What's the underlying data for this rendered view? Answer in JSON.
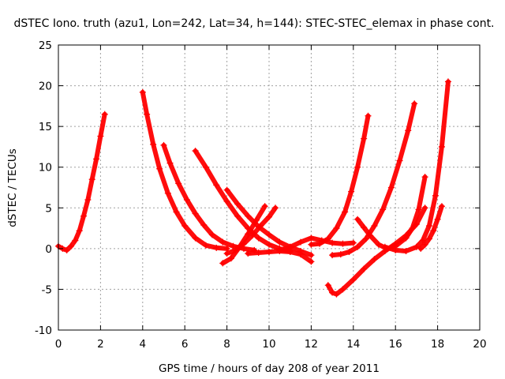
{
  "chart_data": {
    "type": "scatter",
    "title": "dSTEC Iono. truth (azu1, Lon=242, Lat=34, h=144): STEC-STEC_elemax in phase cont.",
    "xlabel": "GPS time / hours of day 208 of year 2011",
    "ylabel": "dSTEC  / TECUs",
    "xlim": [
      0,
      20
    ],
    "ylim": [
      -10,
      25
    ],
    "xticks": [
      0,
      2,
      4,
      6,
      8,
      10,
      12,
      14,
      16,
      18,
      20
    ],
    "yticks": [
      -10,
      -5,
      0,
      5,
      10,
      15,
      20,
      25
    ],
    "xtick_labels": [
      "0",
      "2",
      "4",
      "6",
      "8",
      "10",
      "12",
      "14",
      "16",
      "18",
      "20"
    ],
    "ytick_labels": [
      "-10",
      "-5",
      "0",
      "5",
      "10",
      "15",
      "20",
      "25"
    ],
    "grid": true,
    "legend": "none",
    "marker": "plus",
    "color": "#ff0000",
    "series": [
      {
        "x": [
          0.0,
          0.2,
          0.4,
          0.6,
          0.8,
          1.0,
          1.2,
          1.4,
          1.6,
          1.8,
          2.0,
          2.2
        ],
        "y": [
          0.3,
          0.0,
          -0.2,
          0.3,
          1.0,
          2.2,
          4.0,
          6.0,
          8.5,
          11.0,
          13.8,
          16.5
        ]
      },
      {
        "x": [
          4.0,
          4.2,
          4.5,
          4.8,
          5.2,
          5.6,
          6.0,
          6.5,
          7.0,
          7.5,
          8.0
        ],
        "y": [
          19.2,
          16.5,
          12.8,
          9.8,
          6.8,
          4.5,
          2.8,
          1.3,
          0.4,
          0.1,
          0.0
        ]
      },
      {
        "x": [
          5.0,
          5.3,
          5.7,
          6.1,
          6.5,
          6.9,
          7.3,
          7.8,
          8.3,
          8.8,
          9.3
        ],
        "y": [
          12.7,
          10.5,
          8.0,
          6.0,
          4.3,
          2.9,
          1.7,
          0.8,
          0.3,
          0.0,
          -0.2
        ]
      },
      {
        "x": [
          6.5,
          7.0,
          7.5,
          8.0,
          8.5,
          9.0,
          9.5,
          10.0,
          10.5,
          11.0
        ],
        "y": [
          12.0,
          10.0,
          7.8,
          5.8,
          4.0,
          2.5,
          1.3,
          0.5,
          0.0,
          -0.3
        ]
      },
      {
        "x": [
          8.0,
          8.5,
          9.0,
          9.5,
          10.0,
          10.5,
          11.0,
          11.5,
          12.0
        ],
        "y": [
          7.2,
          5.5,
          4.0,
          2.7,
          1.7,
          0.8,
          0.2,
          -0.3,
          -0.8
        ]
      },
      {
        "x": [
          7.8,
          8.2,
          8.6,
          9.0,
          9.4,
          9.8
        ],
        "y": [
          -1.8,
          -1.2,
          0.2,
          1.8,
          3.5,
          5.2
        ]
      },
      {
        "x": [
          8.0,
          8.4,
          8.8,
          9.2,
          9.6,
          10.0,
          10.3
        ],
        "y": [
          -0.6,
          -0.2,
          0.6,
          1.6,
          2.8,
          3.9,
          5.0
        ]
      },
      {
        "x": [
          9.0,
          9.5,
          10.0,
          10.5,
          11.0,
          11.5,
          12.0
        ],
        "y": [
          -0.6,
          -0.5,
          -0.4,
          -0.3,
          -0.4,
          -0.7,
          -1.6
        ]
      },
      {
        "x": [
          10.5,
          11.0,
          11.5,
          12.0,
          12.5,
          13.0,
          13.5,
          14.0
        ],
        "y": [
          -0.2,
          0.2,
          0.8,
          1.3,
          1.0,
          0.7,
          0.6,
          0.7
        ]
      },
      {
        "x": [
          12.0,
          12.4,
          12.8,
          13.2,
          13.6,
          13.9,
          14.2,
          14.5,
          14.7
        ],
        "y": [
          0.5,
          0.6,
          1.2,
          2.5,
          4.5,
          7.0,
          10.0,
          13.5,
          16.3
        ]
      },
      {
        "x": [
          12.8,
          13.0,
          13.2,
          13.5,
          14.0,
          14.5,
          15.0,
          15.5,
          16.0,
          16.5,
          17.0,
          17.4
        ],
        "y": [
          -4.5,
          -5.4,
          -5.6,
          -5.0,
          -3.8,
          -2.5,
          -1.3,
          -0.3,
          0.6,
          1.6,
          3.0,
          5.0
        ]
      },
      {
        "x": [
          13.0,
          13.4,
          13.8,
          14.2,
          14.6,
          15.0,
          15.4,
          15.8,
          16.2,
          16.6,
          16.9
        ],
        "y": [
          -0.8,
          -0.7,
          -0.4,
          0.2,
          1.2,
          2.8,
          4.8,
          7.5,
          10.8,
          14.5,
          17.8
        ]
      },
      {
        "x": [
          14.2,
          14.5,
          14.8,
          15.2,
          15.6,
          16.0,
          16.5,
          16.8,
          17.1,
          17.4
        ],
        "y": [
          3.6,
          2.6,
          1.6,
          0.5,
          0.0,
          0.3,
          1.3,
          2.5,
          4.8,
          8.8
        ]
      },
      {
        "x": [
          15.5,
          16.0,
          16.5,
          17.0,
          17.3,
          17.6,
          17.9,
          18.2,
          18.5
        ],
        "y": [
          0.2,
          -0.2,
          -0.3,
          0.2,
          1.0,
          2.8,
          6.5,
          12.5,
          20.5
        ]
      },
      {
        "x": [
          17.2,
          17.4,
          17.6,
          17.8,
          18.0,
          18.2
        ],
        "y": [
          0.0,
          0.5,
          1.2,
          2.2,
          3.6,
          5.2
        ]
      }
    ]
  }
}
